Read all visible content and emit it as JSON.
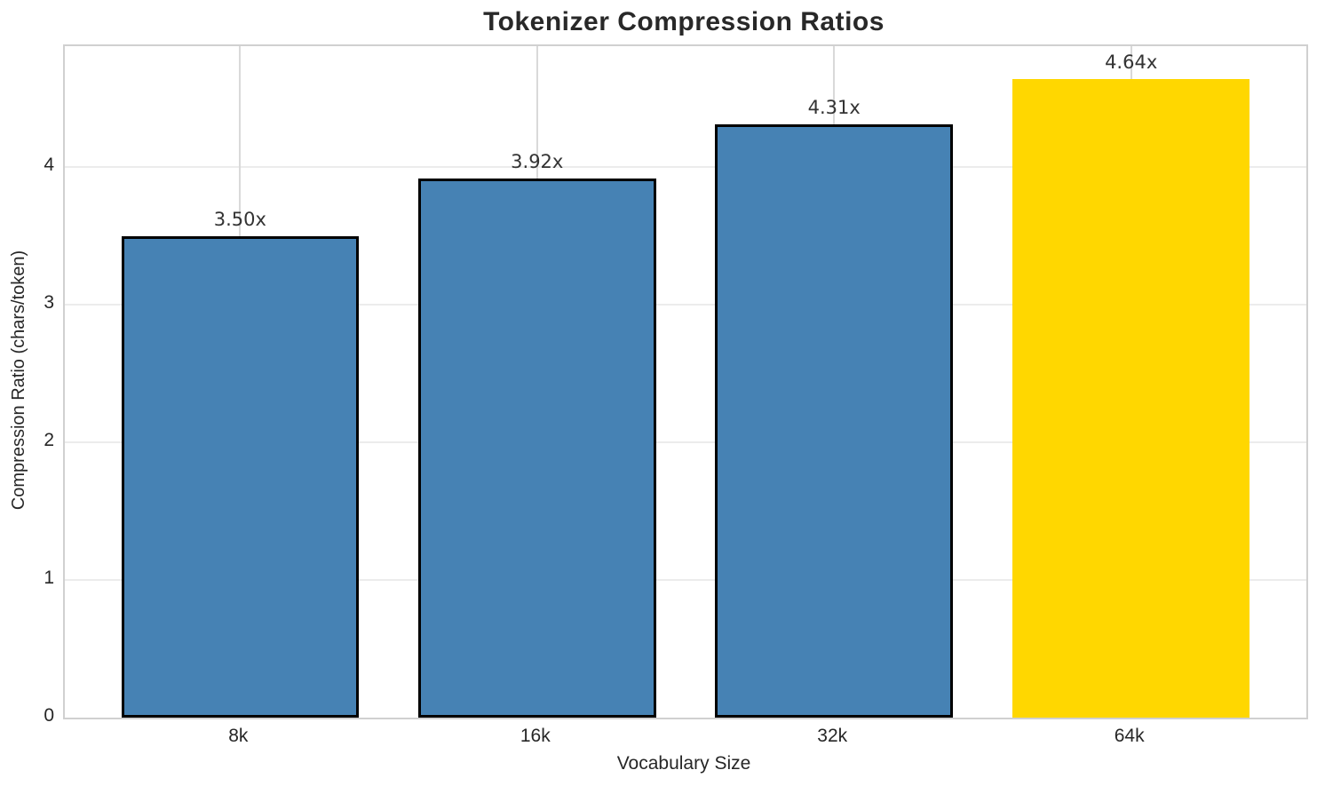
{
  "chart_data": {
    "type": "bar",
    "title": "Tokenizer Compression Ratios",
    "xlabel": "Vocabulary Size",
    "ylabel": "Compression Ratio (chars/token)",
    "categories": [
      "8k",
      "16k",
      "32k",
      "64k"
    ],
    "values": [
      3.5,
      3.92,
      4.31,
      4.64
    ],
    "bar_labels": [
      "3.50x",
      "3.92x",
      "4.31x",
      "4.64x"
    ],
    "bar_colors": [
      "#4682B4",
      "#4682B4",
      "#4682B4",
      "#FFD700"
    ],
    "bar_edge_colors": [
      "#000000",
      "#000000",
      "#000000",
      "none"
    ],
    "highlight_color": "#FFD700",
    "base_color": "#4682B4",
    "yticks": [
      0,
      1,
      2,
      3,
      4
    ],
    "ylim": [
      0,
      4.88
    ],
    "grid": true,
    "legend_position": "none"
  }
}
